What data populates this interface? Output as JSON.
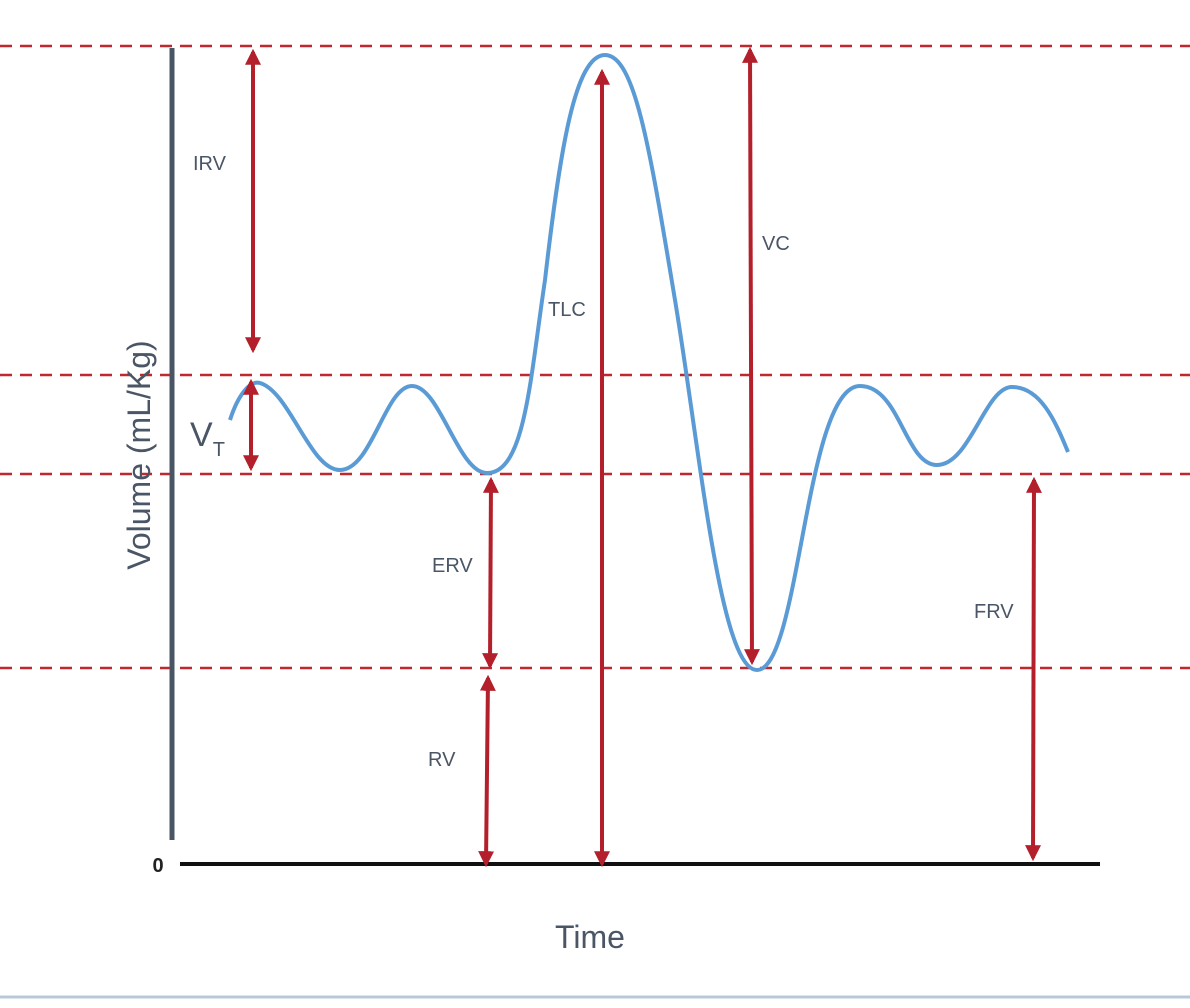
{
  "axes": {
    "y_label": "Volume (mL/Kg)",
    "x_label": "Time",
    "origin": "0"
  },
  "labels": {
    "irv": "IRV",
    "vc": "VC",
    "tlc": "TLC",
    "erv": "ERV",
    "frv": "FRV",
    "rv": "RV"
  },
  "vt": {
    "main": "V",
    "sub": "T"
  }
}
